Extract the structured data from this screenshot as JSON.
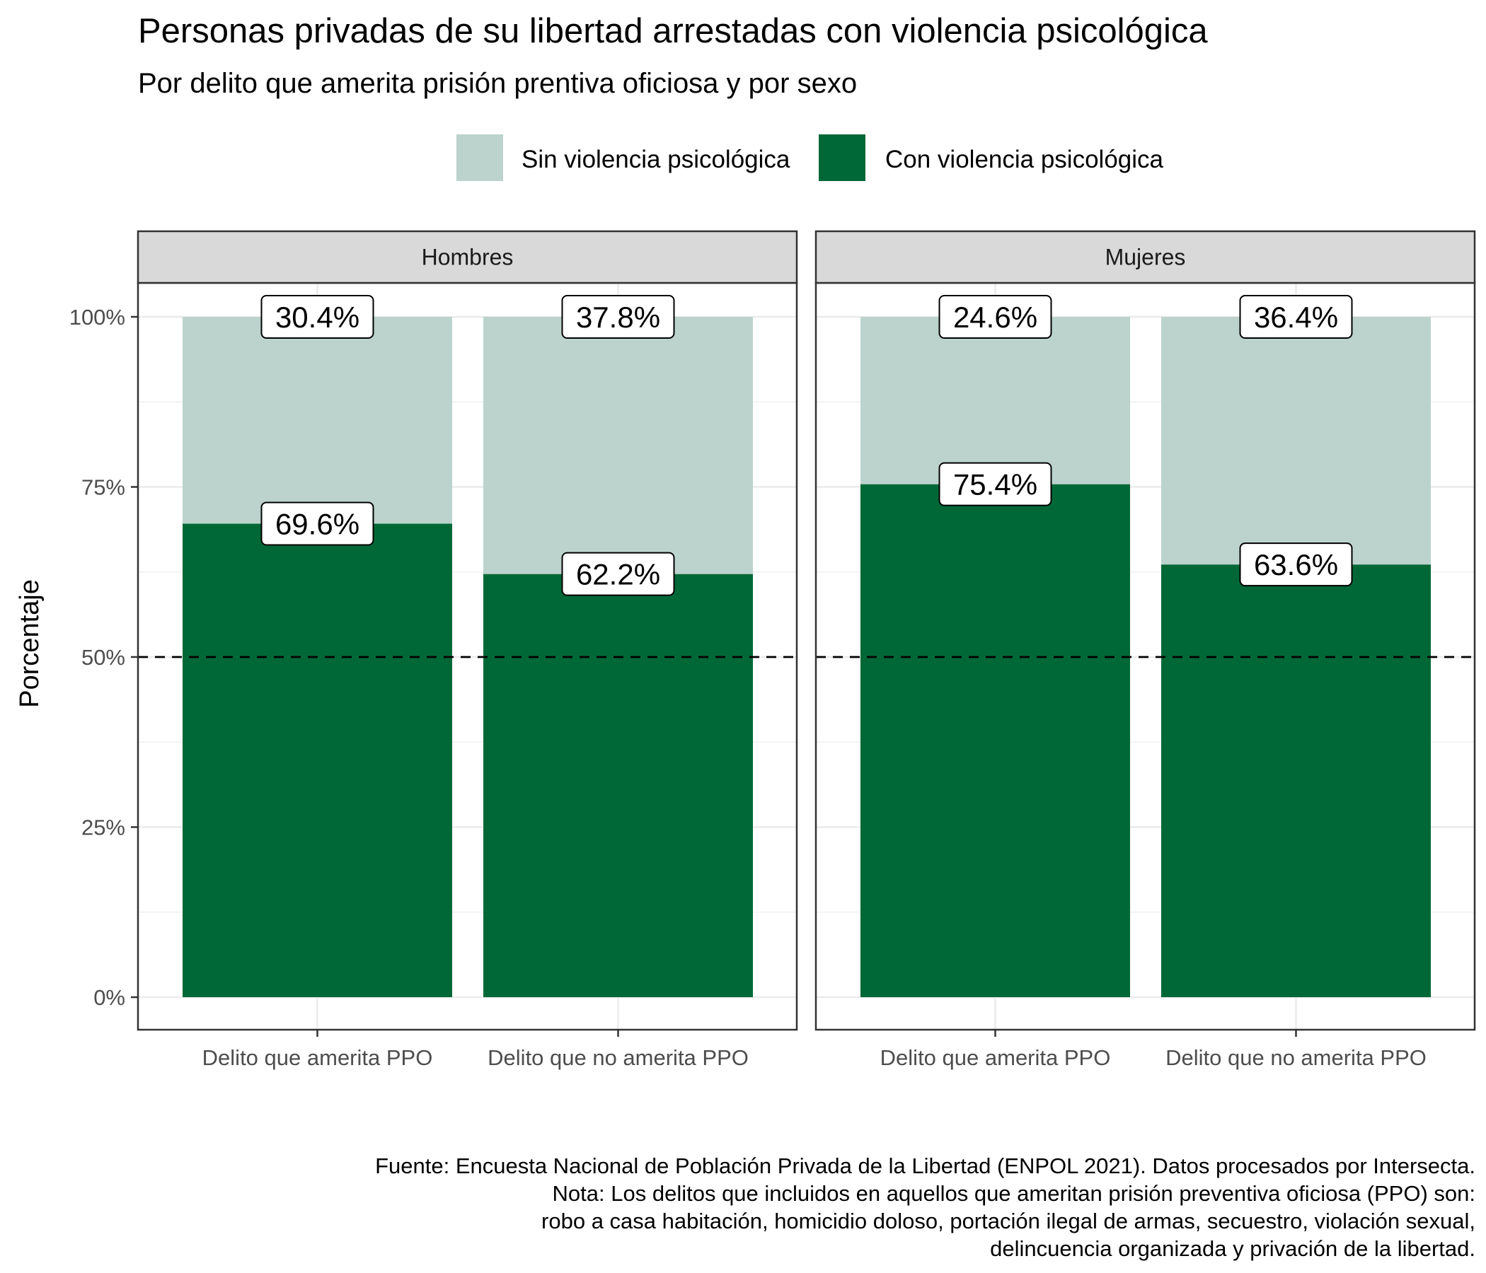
{
  "chart_data": {
    "type": "bar",
    "stacked": true,
    "title": "Personas privadas de su libertad arrestadas con violencia psicológica",
    "subtitle": "Por delito que amerita prisión prentiva oficiosa y por sexo",
    "ylabel": "Porcentaje",
    "ylim": [
      0,
      100
    ],
    "yticks": [
      "0%",
      "25%",
      "50%",
      "75%",
      "100%"
    ],
    "reference_line": 50,
    "categories": [
      "Delito que amerita PPO",
      "Delito que no amerita PPO"
    ],
    "legend": {
      "position": "top",
      "items": [
        {
          "label": "Sin violencia psicológica",
          "color": "#bcd3cd"
        },
        {
          "label": "Con violencia psicológica",
          "color": "#006837"
        }
      ]
    },
    "facets": [
      {
        "name": "Hombres",
        "series": [
          {
            "name": "Con violencia psicológica",
            "values": [
              69.6,
              62.2
            ],
            "labels": [
              "69.6%",
              "62.2%"
            ]
          },
          {
            "name": "Sin violencia psicológica",
            "values": [
              30.4,
              37.8
            ],
            "labels": [
              "30.4%",
              "37.8%"
            ]
          }
        ]
      },
      {
        "name": "Mujeres",
        "series": [
          {
            "name": "Con violencia psicológica",
            "values": [
              75.4,
              63.6
            ],
            "labels": [
              "75.4%",
              "63.6%"
            ]
          },
          {
            "name": "Sin violencia psicológica",
            "values": [
              24.6,
              36.4
            ],
            "labels": [
              "24.6%",
              "36.4%"
            ]
          }
        ]
      }
    ],
    "caption": [
      "Fuente: Encuesta Nacional de Población Privada de la Libertad (ENPOL 2021). Datos procesados por Intersecta.",
      "Nota: Los delitos que incluidos en aquellos que ameritan prisión preventiva oficiosa (PPO) son:",
      "robo a casa habitación, homicidio doloso, portación ilegal de armas, secuestro, violación sexual,",
      "delincuencia organizada y privación de la libertad."
    ]
  }
}
